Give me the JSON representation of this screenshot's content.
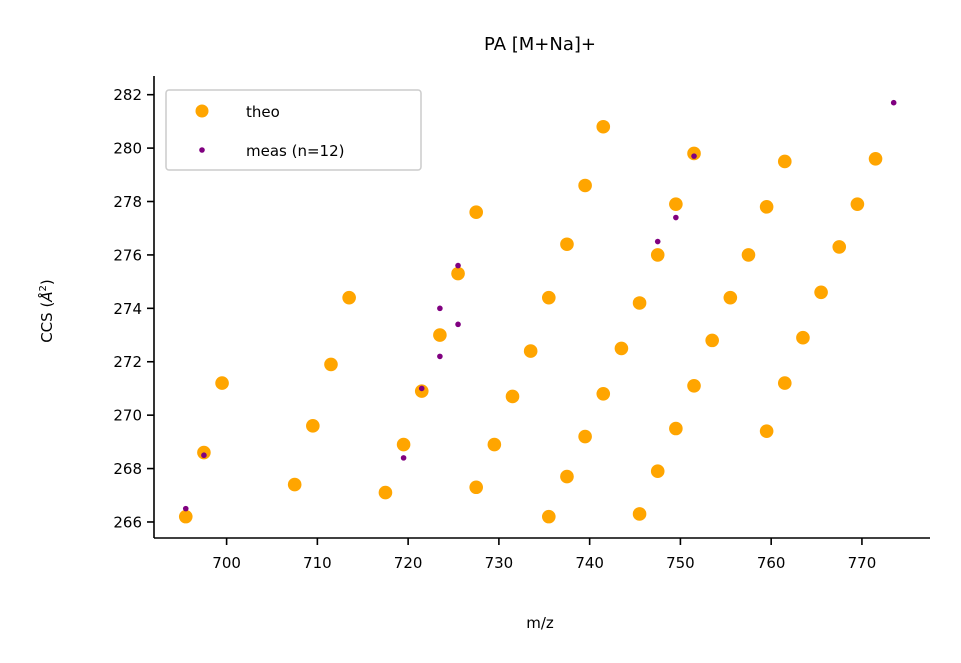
{
  "chart_data": {
    "type": "scatter",
    "title": "PA [M+Na]+",
    "xlabel": "m/z",
    "ylabel": "CCS (",
    "ylabel_unit": "Å",
    "ylabel_unit_exp": "2",
    "ylabel_close": ")",
    "xlim": [
      692,
      777.5
    ],
    "ylim": [
      265.4,
      282.7
    ],
    "xticks": [
      700,
      710,
      720,
      730,
      740,
      750,
      760,
      770
    ],
    "yticks": [
      266,
      268,
      270,
      272,
      274,
      276,
      278,
      280,
      282
    ],
    "grid": false,
    "legend": "top-left",
    "series": [
      {
        "name": "theo",
        "color": "#ffa500",
        "points": [
          [
            695.5,
            266.2
          ],
          [
            697.5,
            268.6
          ],
          [
            699.5,
            271.2
          ],
          [
            707.5,
            267.4
          ],
          [
            709.5,
            269.6
          ],
          [
            711.5,
            271.9
          ],
          [
            713.5,
            274.4
          ],
          [
            717.5,
            267.1
          ],
          [
            719.5,
            268.9
          ],
          [
            721.5,
            270.9
          ],
          [
            723.5,
            273.0
          ],
          [
            725.5,
            275.3
          ],
          [
            727.5,
            277.6
          ],
          [
            727.5,
            267.3
          ],
          [
            729.5,
            268.9
          ],
          [
            731.5,
            270.7
          ],
          [
            733.5,
            272.4
          ],
          [
            735.5,
            274.4
          ],
          [
            737.5,
            276.4
          ],
          [
            739.5,
            278.6
          ],
          [
            741.5,
            280.8
          ],
          [
            735.5,
            266.2
          ],
          [
            737.5,
            267.7
          ],
          [
            739.5,
            269.2
          ],
          [
            741.5,
            270.8
          ],
          [
            743.5,
            272.5
          ],
          [
            745.5,
            274.2
          ],
          [
            747.5,
            276.0
          ],
          [
            749.5,
            277.9
          ],
          [
            751.5,
            279.8
          ],
          [
            745.5,
            266.3
          ],
          [
            747.5,
            267.9
          ],
          [
            749.5,
            269.5
          ],
          [
            751.5,
            271.1
          ],
          [
            753.5,
            272.8
          ],
          [
            755.5,
            274.4
          ],
          [
            757.5,
            276.0
          ],
          [
            759.5,
            277.8
          ],
          [
            761.5,
            279.5
          ],
          [
            759.5,
            269.4
          ],
          [
            761.5,
            271.2
          ],
          [
            763.5,
            272.9
          ],
          [
            765.5,
            274.6
          ],
          [
            767.5,
            276.3
          ],
          [
            769.5,
            277.9
          ],
          [
            771.5,
            279.6
          ]
        ]
      },
      {
        "name": "meas (n=12)",
        "color": "#800080",
        "points": [
          [
            695.5,
            266.5
          ],
          [
            697.5,
            268.5
          ],
          [
            719.5,
            268.4
          ],
          [
            721.5,
            271.0
          ],
          [
            723.5,
            272.2
          ],
          [
            723.5,
            274.0
          ],
          [
            725.5,
            273.4
          ],
          [
            725.5,
            275.6
          ],
          [
            747.5,
            276.5
          ],
          [
            749.5,
            277.4
          ],
          [
            751.5,
            279.7
          ],
          [
            773.5,
            281.7
          ]
        ]
      }
    ]
  }
}
